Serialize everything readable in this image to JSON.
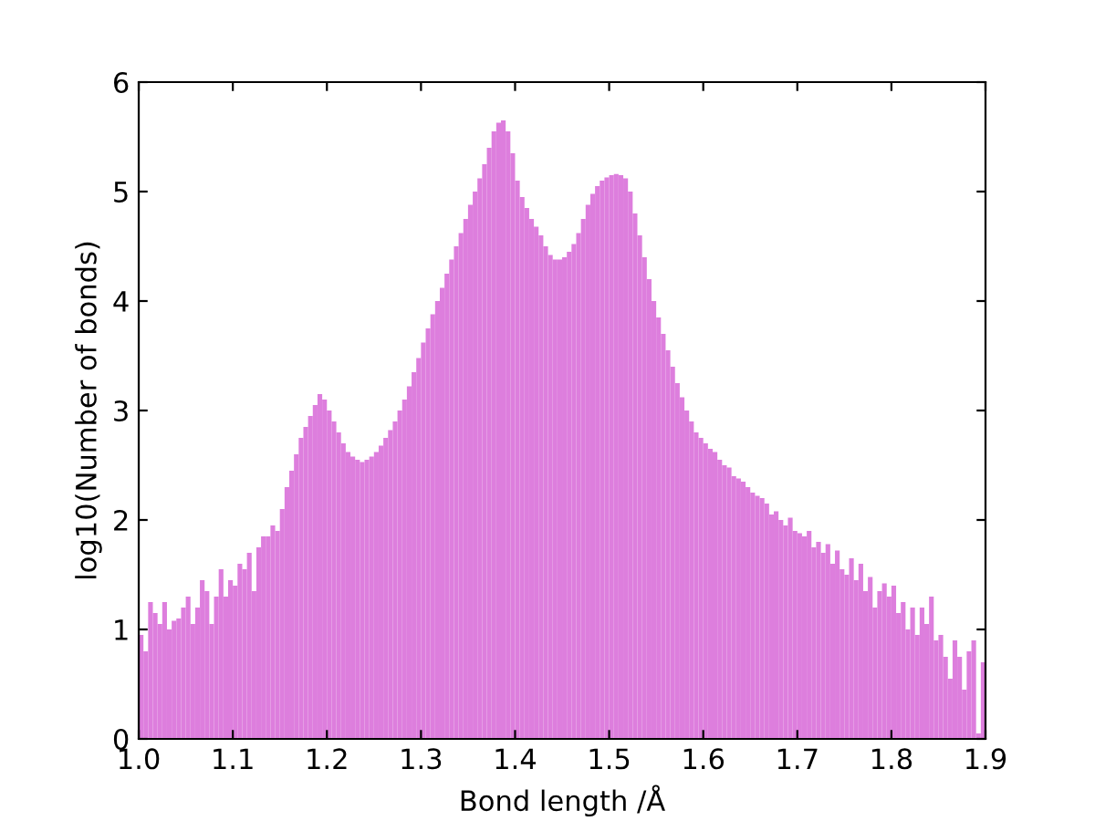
{
  "chart_data": {
    "type": "histogram",
    "xlabel": "Bond length /Å",
    "ylabel": "log10(Number of bonds)",
    "color": "#dd7edd",
    "bins": [
      1.0,
      1.005,
      1.01,
      1.015,
      1.02,
      1.025,
      1.03,
      1.035,
      1.04,
      1.045,
      1.05,
      1.055,
      1.06,
      1.065,
      1.07,
      1.075,
      1.08,
      1.085,
      1.09,
      1.095,
      1.1,
      1.105,
      1.11,
      1.115,
      1.12,
      1.125,
      1.13,
      1.135,
      1.14,
      1.145,
      1.15,
      1.155,
      1.16,
      1.165,
      1.17,
      1.175,
      1.18,
      1.185,
      1.19,
      1.195,
      1.2,
      1.205,
      1.21,
      1.215,
      1.22,
      1.225,
      1.23,
      1.235,
      1.24,
      1.245,
      1.25,
      1.255,
      1.26,
      1.265,
      1.27,
      1.275,
      1.28,
      1.285,
      1.29,
      1.295,
      1.3,
      1.305,
      1.31,
      1.315,
      1.32,
      1.325,
      1.33,
      1.335,
      1.34,
      1.345,
      1.35,
      1.355,
      1.36,
      1.365,
      1.37,
      1.375,
      1.38,
      1.385,
      1.39,
      1.395,
      1.4,
      1.405,
      1.41,
      1.415,
      1.42,
      1.425,
      1.43,
      1.435,
      1.44,
      1.445,
      1.45,
      1.455,
      1.46,
      1.465,
      1.47,
      1.475,
      1.48,
      1.485,
      1.49,
      1.495,
      1.5,
      1.505,
      1.51,
      1.515,
      1.52,
      1.525,
      1.53,
      1.535,
      1.54,
      1.545,
      1.55,
      1.555,
      1.56,
      1.565,
      1.57,
      1.575,
      1.58,
      1.585,
      1.59,
      1.595,
      1.6,
      1.605,
      1.61,
      1.615,
      1.62,
      1.625,
      1.63,
      1.635,
      1.64,
      1.645,
      1.65,
      1.655,
      1.66,
      1.665,
      1.67,
      1.675,
      1.68,
      1.685,
      1.69,
      1.695,
      1.7,
      1.705,
      1.71,
      1.715,
      1.72,
      1.725,
      1.73,
      1.735,
      1.74,
      1.745,
      1.75,
      1.755,
      1.76,
      1.765,
      1.77,
      1.775,
      1.78,
      1.785,
      1.79,
      1.795,
      1.8,
      1.805,
      1.81,
      1.815,
      1.82,
      1.825,
      1.83,
      1.835,
      1.84,
      1.845,
      1.85,
      1.855,
      1.86,
      1.865,
      1.87,
      1.875,
      1.88,
      1.885,
      1.89,
      1.895,
      1.9
    ],
    "values": [
      0.95,
      0.8,
      1.25,
      1.15,
      1.05,
      1.25,
      1.0,
      1.08,
      1.1,
      1.2,
      1.3,
      1.05,
      1.2,
      1.45,
      1.35,
      1.05,
      1.3,
      1.55,
      1.3,
      1.45,
      1.4,
      1.6,
      1.55,
      1.7,
      1.35,
      1.75,
      1.85,
      1.85,
      1.95,
      1.9,
      2.1,
      2.3,
      2.45,
      2.6,
      2.75,
      2.85,
      2.95,
      3.05,
      3.15,
      3.1,
      3.0,
      2.9,
      2.8,
      2.7,
      2.62,
      2.58,
      2.55,
      2.53,
      2.55,
      2.58,
      2.62,
      2.68,
      2.75,
      2.82,
      2.9,
      3.0,
      3.1,
      3.22,
      3.35,
      3.48,
      3.62,
      3.75,
      3.88,
      4.0,
      4.12,
      4.25,
      4.38,
      4.5,
      4.62,
      4.75,
      4.88,
      5.0,
      5.12,
      5.25,
      5.4,
      5.55,
      5.63,
      5.65,
      5.55,
      5.35,
      5.1,
      4.95,
      4.85,
      4.75,
      4.68,
      4.6,
      4.5,
      4.42,
      4.38,
      4.38,
      4.4,
      4.45,
      4.52,
      4.62,
      4.75,
      4.88,
      4.98,
      5.05,
      5.1,
      5.13,
      5.15,
      5.16,
      5.15,
      5.12,
      5.0,
      4.8,
      4.6,
      4.4,
      4.2,
      4.0,
      3.85,
      3.7,
      3.55,
      3.4,
      3.25,
      3.12,
      3.0,
      2.9,
      2.8,
      2.75,
      2.7,
      2.65,
      2.62,
      2.55,
      2.5,
      2.48,
      2.4,
      2.38,
      2.35,
      2.3,
      2.25,
      2.22,
      2.2,
      2.15,
      2.05,
      2.08,
      2.0,
      1.95,
      2.02,
      1.9,
      1.88,
      1.85,
      1.9,
      1.75,
      1.8,
      1.7,
      1.78,
      1.6,
      1.72,
      1.55,
      1.5,
      1.65,
      1.45,
      1.6,
      1.35,
      1.48,
      1.2,
      1.35,
      1.42,
      1.3,
      1.4,
      1.15,
      1.25,
      1.0,
      1.2,
      0.95,
      1.2,
      1.05,
      1.3,
      0.9,
      0.95,
      0.75,
      0.55,
      0.9,
      0.75,
      0.45,
      0.8,
      0.9,
      0.05,
      0.7
    ],
    "xlim": [
      1.0,
      1.9
    ],
    "ylim": [
      0,
      6
    ],
    "xticks": [
      {
        "value": 1.0,
        "label": "1.0"
      },
      1.1,
      1.2,
      1.3,
      1.4,
      1.5,
      1.6,
      1.7,
      1.8,
      1.9
    ],
    "yticks": [
      0,
      1,
      2,
      3,
      4,
      5,
      6
    ]
  }
}
